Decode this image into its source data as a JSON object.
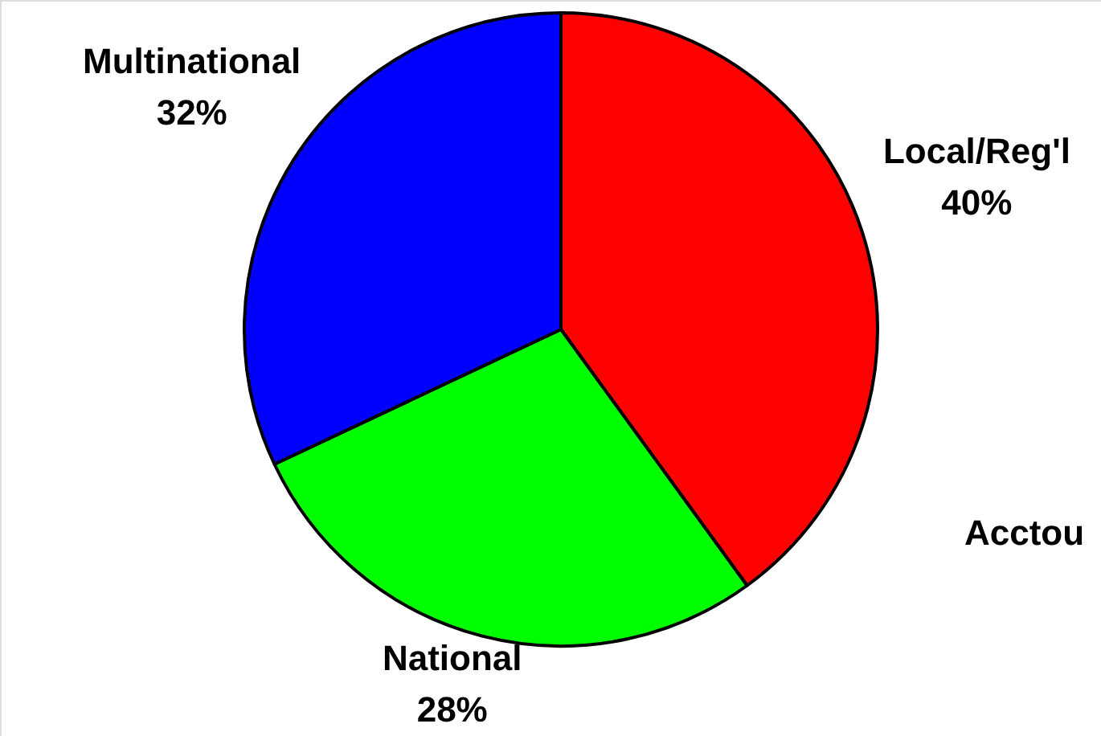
{
  "chart_data": {
    "type": "pie",
    "categories": [
      "Local/Reg'l",
      "National",
      "Multinational"
    ],
    "values": [
      40,
      28,
      32
    ],
    "colors": [
      "#ff0000",
      "#00ff00",
      "#0000ff"
    ],
    "value_labels": [
      "40%",
      "28%",
      "32%"
    ],
    "annotations": [
      "Acctou"
    ]
  }
}
